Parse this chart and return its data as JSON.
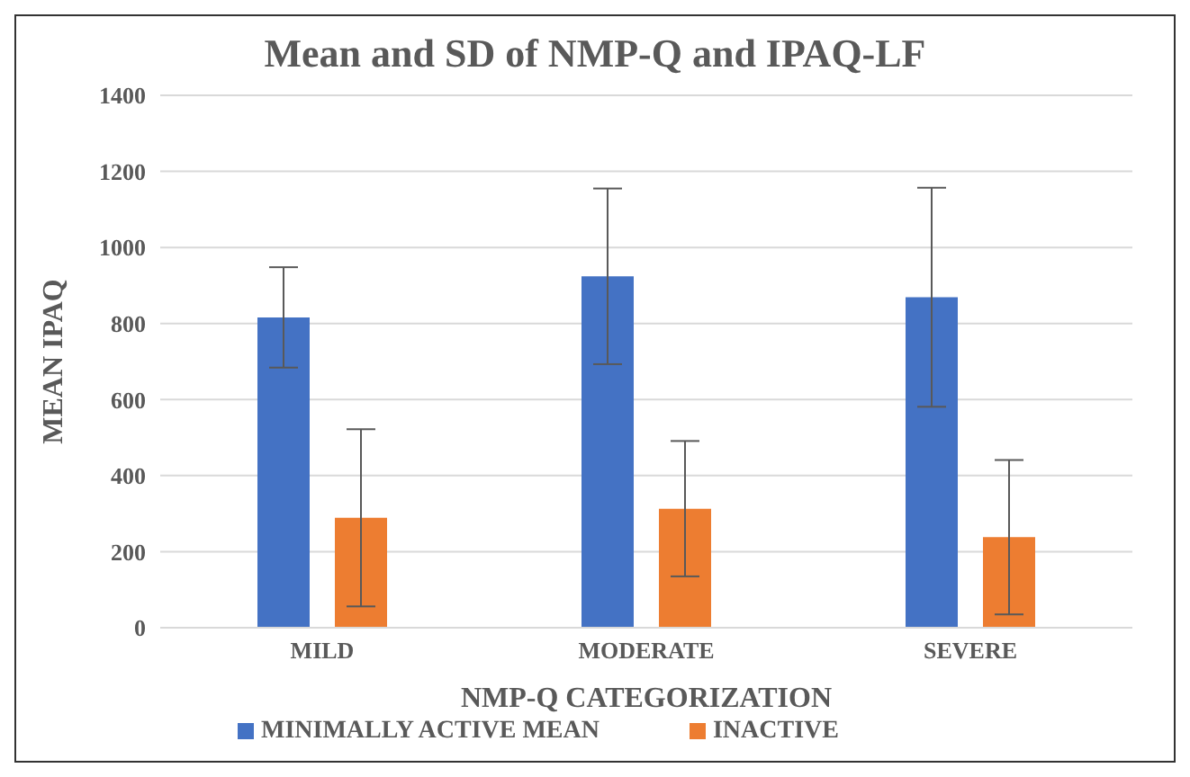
{
  "chart_data": {
    "type": "bar",
    "title": "Mean and SD of NMP-Q and IPAQ-LF",
    "xlabel": "NMP-Q CATEGORIZATION",
    "ylabel": "MEAN IPAQ",
    "categories": [
      "MILD",
      "MODERATE",
      "SEVERE"
    ],
    "series": [
      {
        "name": "MINIMALLY ACTIVE MEAN",
        "color": "#4472c4",
        "values": [
          816,
          924,
          869
        ],
        "errors": [
          132,
          231,
          288
        ]
      },
      {
        "name": "INACTIVE",
        "color": "#ed7d31",
        "values": [
          289,
          313,
          238
        ],
        "errors": [
          233,
          178,
          203
        ]
      }
    ],
    "ylim": [
      0,
      1400
    ],
    "yticks": [
      0,
      200,
      400,
      600,
      800,
      1000,
      1200,
      1400
    ],
    "grid": "y",
    "legend": "bottom"
  }
}
